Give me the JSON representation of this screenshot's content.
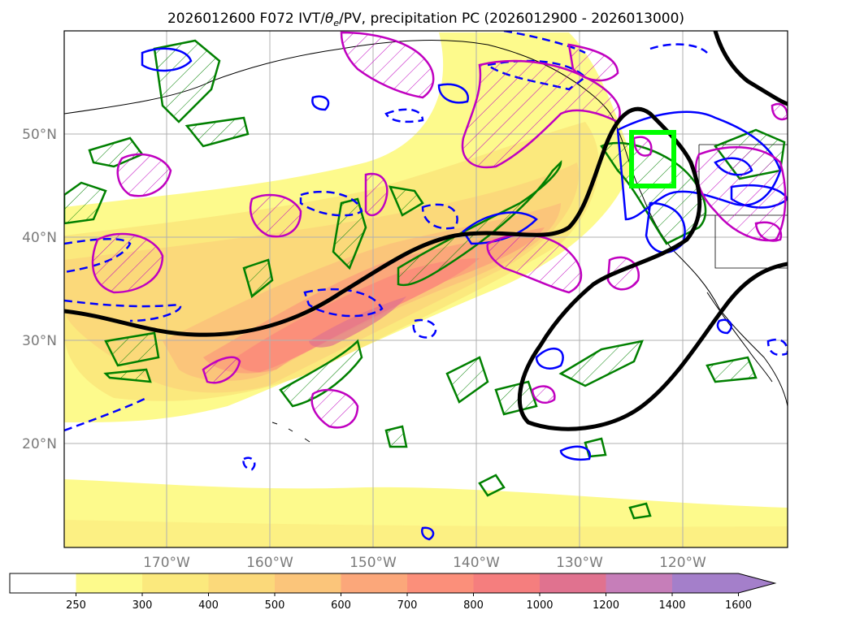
{
  "title": {
    "prefix": "2026012600 F072 IVT/",
    "theta": "θ",
    "theta_sub": "e",
    "suffix": "/PV, precipitation PC (2026012900 - 2026013000)"
  },
  "lat_labels": [
    "50°N",
    "40°N",
    "30°N",
    "20°N"
  ],
  "lon_labels": [
    "170°W",
    "160°W",
    "150°W",
    "140°W",
    "130°W",
    "120°W"
  ],
  "colorbar": {
    "ticks": [
      "250",
      "300",
      "400",
      "500",
      "600",
      "700",
      "800",
      "1000",
      "1200",
      "1400",
      "1600"
    ],
    "colors": [
      "#ffffff",
      "#fdfa8c",
      "#fbe97d",
      "#fbd97a",
      "#fbc57a",
      "#fba77a",
      "#fb8f7a",
      "#f57e7e",
      "#e0728f",
      "#c67eb9",
      "#a47fca"
    ]
  },
  "colors": {
    "trough_line": "#000000",
    "positive_contour": "#0000ff",
    "pv_contour": "#c000c0",
    "theta_contour": "#008000",
    "target_box": "#00ff00",
    "grid": "#b0b0b0",
    "coast": "#000000"
  }
}
